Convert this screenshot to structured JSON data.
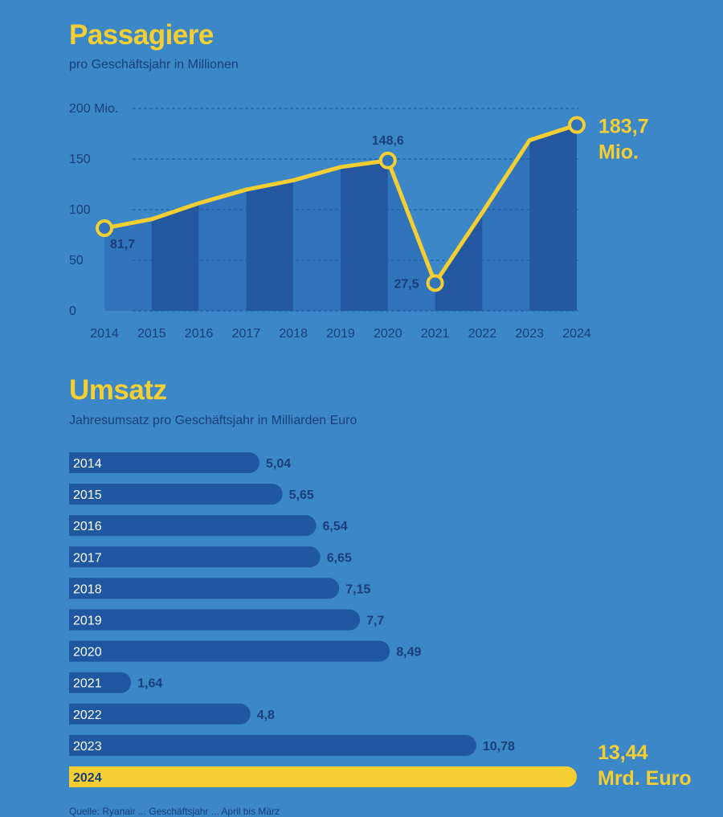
{
  "colors": {
    "background": "#3b87c8",
    "accent_yellow": "#f5cf32",
    "dark_text": "#1a3f7a",
    "bar_dark": "#2358a0",
    "bar_light": "#3174bc",
    "hbar": "#1f57a0"
  },
  "passagiere": {
    "title": "Passagiere",
    "subtitle": "pro Geschäftsjahr in Millionen"
  },
  "umsatz": {
    "title": "Umsatz",
    "subtitle": "Jahresumsatz pro Geschäftsjahr in Milliarden Euro"
  },
  "source": "Quelle: Ryanair ... Geschäftsjahr ... April bis März",
  "chart_data": [
    {
      "type": "line",
      "title": "Passagiere",
      "subtitle": "pro Geschäftsjahr in Millionen",
      "categories": [
        "2014",
        "2015",
        "2016",
        "2017",
        "2018",
        "2019",
        "2020",
        "2021",
        "2022",
        "2023",
        "2024"
      ],
      "values": [
        81.7,
        90.6,
        106.4,
        119.8,
        129.0,
        142.1,
        148.6,
        27.5,
        97.1,
        168.6,
        183.7
      ],
      "ylim": [
        0,
        200
      ],
      "y_ticks": [
        0,
        50,
        100,
        150,
        200
      ],
      "y_tick_labels": [
        "0",
        "50",
        "100",
        "150",
        "200 Mio."
      ],
      "point_labels": [
        {
          "index": 0,
          "text": "81,7"
        },
        {
          "index": 6,
          "text": "148,6"
        },
        {
          "index": 7,
          "text": "27,5"
        }
      ],
      "highlight_label": [
        "183,7",
        "Mio."
      ],
      "grid": true
    },
    {
      "type": "bar",
      "orientation": "horizontal",
      "title": "Umsatz",
      "subtitle": "Jahresumsatz pro Geschäftsjahr in Milliarden Euro",
      "categories": [
        "2014",
        "2015",
        "2016",
        "2017",
        "2018",
        "2019",
        "2020",
        "2021",
        "2022",
        "2023",
        "2024"
      ],
      "values": [
        5.04,
        5.65,
        6.54,
        6.65,
        7.15,
        7.7,
        8.49,
        1.64,
        4.8,
        10.78,
        13.44
      ],
      "value_labels": [
        "5,04",
        "5,65",
        "6,54",
        "6,65",
        "7,15",
        "7,7",
        "8,49",
        "1,64",
        "4,8",
        "10,78",
        ""
      ],
      "highlight_label": [
        "13,44",
        "Mrd. Euro"
      ],
      "highlight_index": 10
    }
  ]
}
